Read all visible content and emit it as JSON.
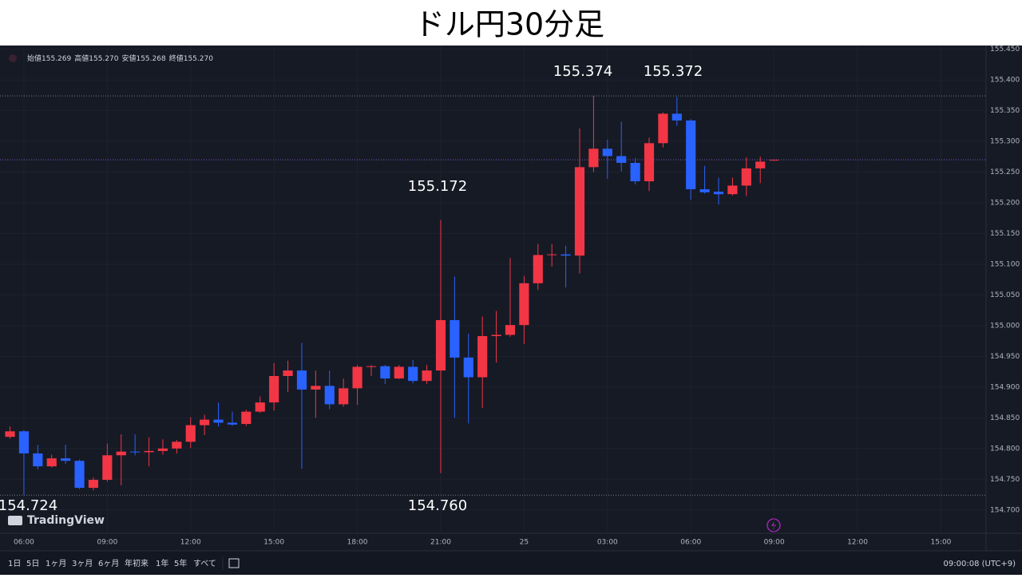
{
  "header": {
    "title": "ドル円30分足"
  },
  "legend": [
    {
      "label": "始値",
      "value": "155.269"
    },
    {
      "label": "高値",
      "value": "155.270"
    },
    {
      "label": "安値",
      "value": "155.268"
    },
    {
      "label": "終値",
      "value": "155.270"
    }
  ],
  "chart_data": {
    "type": "candlestick",
    "up_color": "#f23645",
    "down_color": "#2962ff",
    "open": [
      154.819,
      154.828,
      154.792,
      154.771,
      154.784,
      154.78,
      154.736,
      154.749,
      154.789,
      154.795,
      154.794,
      154.796,
      154.8,
      154.811,
      154.838,
      154.847,
      154.842,
      154.84,
      154.86,
      154.875,
      154.918,
      154.927,
      154.896,
      154.902,
      154.872,
      154.898,
      154.933,
      154.934,
      154.914,
      154.933,
      154.91,
      154.927,
      155.009,
      154.948,
      154.916,
      154.983,
      154.985,
      155.001,
      155.069,
      155.115,
      155.116,
      155.114,
      155.258,
      155.288,
      155.276,
      155.265,
      155.235,
      155.297,
      155.345,
      155.334,
      155.222,
      155.218,
      155.214,
      155.228,
      155.256,
      155.269
    ],
    "high": [
      154.836,
      154.83,
      154.806,
      154.79,
      154.806,
      154.782,
      154.753,
      154.808,
      154.823,
      154.823,
      154.818,
      154.815,
      154.814,
      154.851,
      154.855,
      154.875,
      154.86,
      154.863,
      154.885,
      154.939,
      154.943,
      154.972,
      154.927,
      154.927,
      154.914,
      154.936,
      154.936,
      154.936,
      154.936,
      154.944,
      154.936,
      155.172,
      155.08,
      154.987,
      155.015,
      155.024,
      155.11,
      155.081,
      155.133,
      155.133,
      155.13,
      155.321,
      155.374,
      155.303,
      155.332,
      155.273,
      155.306,
      155.347,
      155.372,
      155.336,
      155.26,
      155.241,
      155.241,
      155.274,
      155.275,
      155.27
    ],
    "low": [
      154.816,
      154.724,
      154.766,
      154.769,
      154.775,
      154.734,
      154.732,
      154.746,
      154.74,
      154.789,
      154.771,
      154.79,
      154.792,
      154.801,
      154.822,
      154.836,
      154.837,
      154.837,
      154.858,
      154.862,
      154.892,
      154.767,
      154.85,
      154.864,
      154.868,
      154.871,
      154.918,
      154.905,
      154.913,
      154.906,
      154.905,
      154.76,
      154.85,
      154.841,
      154.866,
      154.94,
      154.982,
      154.97,
      155.058,
      155.096,
      155.062,
      155.085,
      155.25,
      155.239,
      155.251,
      155.23,
      155.219,
      155.29,
      155.325,
      155.205,
      155.215,
      155.197,
      155.212,
      155.211,
      155.232,
      155.268
    ],
    "close": [
      154.828,
      154.792,
      154.771,
      154.784,
      154.78,
      154.736,
      154.749,
      154.789,
      154.795,
      154.794,
      154.796,
      154.8,
      154.811,
      154.838,
      154.847,
      154.842,
      154.839,
      154.86,
      154.875,
      154.918,
      154.927,
      154.896,
      154.902,
      154.872,
      154.898,
      154.933,
      154.934,
      154.914,
      154.933,
      154.91,
      154.927,
      155.009,
      154.948,
      154.916,
      154.983,
      154.985,
      155.001,
      155.069,
      155.115,
      155.116,
      155.114,
      155.258,
      155.288,
      155.276,
      155.265,
      155.235,
      155.297,
      155.345,
      155.334,
      155.222,
      155.217,
      155.214,
      155.228,
      155.256,
      155.267,
      155.27
    ],
    "ylim": [
      154.662,
      155.456
    ],
    "yticks": [
      {
        "value": 155.45,
        "label": "155.450"
      },
      {
        "value": 155.4,
        "label": "155.400"
      },
      {
        "value": 155.35,
        "label": "155.350"
      },
      {
        "value": 155.3,
        "label": "155.300"
      },
      {
        "value": 155.25,
        "label": "155.250"
      },
      {
        "value": 155.2,
        "label": "155.200"
      },
      {
        "value": 155.15,
        "label": "155.150"
      },
      {
        "value": 155.1,
        "label": "155.100"
      },
      {
        "value": 155.05,
        "label": "155.050"
      },
      {
        "value": 155,
        "label": "155.000"
      },
      {
        "value": 154.95,
        "label": "154.950"
      },
      {
        "value": 154.9,
        "label": "154.900"
      },
      {
        "value": 154.85,
        "label": "154.850"
      },
      {
        "value": 154.8,
        "label": "154.800"
      },
      {
        "value": 154.75,
        "label": "154.750"
      },
      {
        "value": 154.7,
        "label": "154.700"
      }
    ],
    "xlim": [
      -0.72,
      70.25
    ],
    "xticks": [
      {
        "value": 1,
        "label": "06:00"
      },
      {
        "value": 7,
        "label": "09:00"
      },
      {
        "value": 13,
        "label": "12:00"
      },
      {
        "value": 19,
        "label": "15:00"
      },
      {
        "value": 25,
        "label": "18:00"
      },
      {
        "value": 31,
        "label": "21:00"
      },
      {
        "value": 37,
        "label": "25"
      },
      {
        "value": 43,
        "label": "03:00"
      },
      {
        "value": 49,
        "label": "06:00"
      },
      {
        "value": 55,
        "label": "09:00"
      },
      {
        "value": 61,
        "label": "12:00"
      },
      {
        "value": 67,
        "label": "15:00"
      }
    ],
    "annotations": [
      "155.374",
      "155.372",
      "155.172",
      "154.724",
      "154.760"
    ]
  },
  "brand": "TradingView",
  "toolbar": [
    "1日",
    "5日",
    "1ヶ月",
    "3ヶ月",
    "6ヶ月",
    "年初来",
    "1年",
    "5年",
    "すべて"
  ],
  "clock": "09:00:08 (UTC+9)"
}
